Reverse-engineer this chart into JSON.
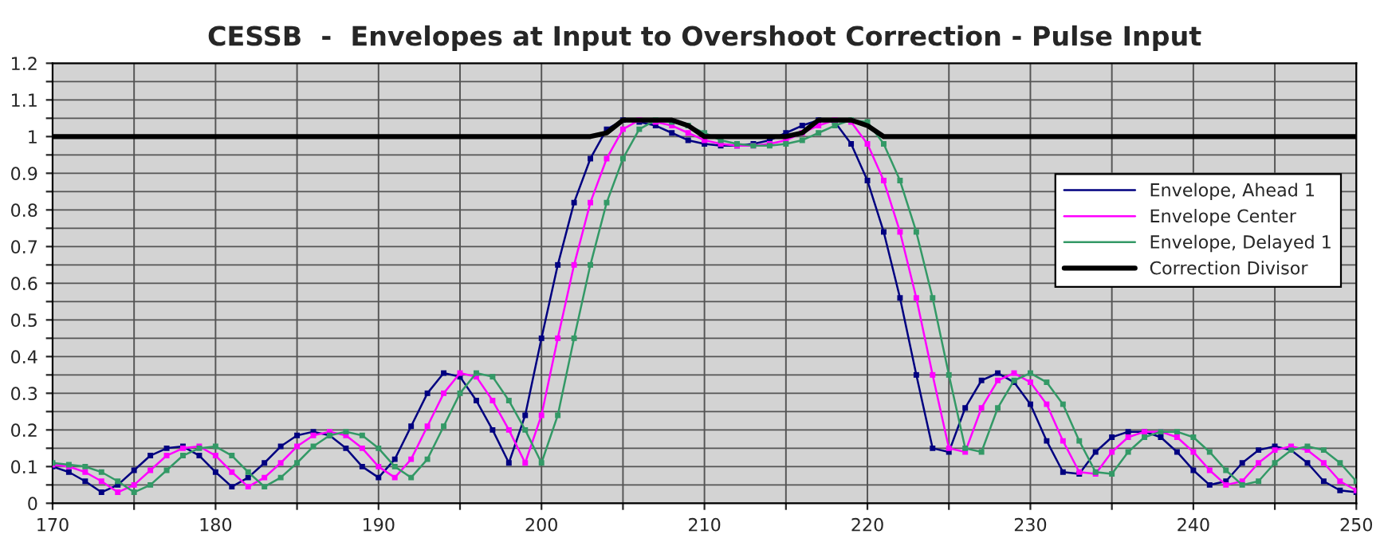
{
  "chart_data": {
    "type": "line",
    "title": "CESSB  -  Envelopes at Input to Overshoot Correction - Pulse Input",
    "x": [
      170,
      171,
      172,
      173,
      174,
      175,
      176,
      177,
      178,
      179,
      180,
      181,
      182,
      183,
      184,
      185,
      186,
      187,
      188,
      189,
      190,
      191,
      192,
      193,
      194,
      195,
      196,
      197,
      198,
      199,
      200,
      201,
      202,
      203,
      204,
      205,
      206,
      207,
      208,
      209,
      210,
      211,
      212,
      213,
      214,
      215,
      216,
      217,
      218,
      219,
      220,
      221,
      222,
      223,
      224,
      225,
      226,
      227,
      228,
      229,
      230,
      231,
      232,
      233,
      234,
      235,
      236,
      237,
      238,
      239,
      240,
      241,
      242,
      243,
      244,
      245,
      246,
      247,
      248,
      249,
      250
    ],
    "series": [
      {
        "name": "Envelope, Ahead 1",
        "color": "#000080",
        "marker": "square",
        "values": [
          0.1,
          0.085,
          0.06,
          0.03,
          0.05,
          0.09,
          0.13,
          0.15,
          0.155,
          0.13,
          0.085,
          0.045,
          0.07,
          0.11,
          0.155,
          0.185,
          0.195,
          0.185,
          0.15,
          0.1,
          0.07,
          0.12,
          0.21,
          0.3,
          0.355,
          0.345,
          0.28,
          0.2,
          0.11,
          0.24,
          0.45,
          0.65,
          0.82,
          0.94,
          1.02,
          1.045,
          1.04,
          1.03,
          1.01,
          0.99,
          0.98,
          0.975,
          0.975,
          0.98,
          0.99,
          1.01,
          1.03,
          1.045,
          1.04,
          0.98,
          0.88,
          0.74,
          0.56,
          0.35,
          0.15,
          0.14,
          0.26,
          0.335,
          0.355,
          0.33,
          0.27,
          0.17,
          0.085,
          0.08,
          0.14,
          0.18,
          0.195,
          0.195,
          0.18,
          0.14,
          0.09,
          0.05,
          0.06,
          0.11,
          0.145,
          0.155,
          0.145,
          0.11,
          0.06,
          0.035,
          0.03
        ]
      },
      {
        "name": "Envelope Center",
        "color": "#ff00ff",
        "marker": "square",
        "values": [
          0.105,
          0.1,
          0.085,
          0.06,
          0.03,
          0.05,
          0.09,
          0.13,
          0.15,
          0.155,
          0.13,
          0.085,
          0.045,
          0.07,
          0.11,
          0.155,
          0.185,
          0.195,
          0.185,
          0.15,
          0.1,
          0.07,
          0.12,
          0.21,
          0.3,
          0.355,
          0.345,
          0.28,
          0.2,
          0.11,
          0.24,
          0.45,
          0.65,
          0.82,
          0.94,
          1.02,
          1.045,
          1.04,
          1.03,
          1.01,
          0.99,
          0.98,
          0.975,
          0.975,
          0.98,
          0.99,
          1.01,
          1.03,
          1.045,
          1.04,
          0.98,
          0.88,
          0.74,
          0.56,
          0.35,
          0.15,
          0.14,
          0.26,
          0.335,
          0.355,
          0.33,
          0.27,
          0.17,
          0.085,
          0.08,
          0.14,
          0.18,
          0.195,
          0.195,
          0.18,
          0.14,
          0.09,
          0.05,
          0.06,
          0.11,
          0.145,
          0.155,
          0.145,
          0.11,
          0.06,
          0.035
        ]
      },
      {
        "name": "Envelope, Delayed 1",
        "color": "#339966",
        "marker": "square",
        "values": [
          0.11,
          0.105,
          0.1,
          0.085,
          0.06,
          0.03,
          0.05,
          0.09,
          0.13,
          0.15,
          0.155,
          0.13,
          0.085,
          0.045,
          0.07,
          0.11,
          0.155,
          0.185,
          0.195,
          0.185,
          0.15,
          0.1,
          0.07,
          0.12,
          0.21,
          0.3,
          0.355,
          0.345,
          0.28,
          0.2,
          0.11,
          0.24,
          0.45,
          0.65,
          0.82,
          0.94,
          1.02,
          1.045,
          1.04,
          1.03,
          1.01,
          0.99,
          0.98,
          0.975,
          0.975,
          0.98,
          0.99,
          1.01,
          1.03,
          1.045,
          1.04,
          0.98,
          0.88,
          0.74,
          0.56,
          0.35,
          0.15,
          0.14,
          0.26,
          0.335,
          0.355,
          0.33,
          0.27,
          0.17,
          0.085,
          0.08,
          0.14,
          0.18,
          0.195,
          0.195,
          0.18,
          0.14,
          0.09,
          0.05,
          0.06,
          0.11,
          0.145,
          0.155,
          0.145,
          0.11,
          0.06
        ]
      },
      {
        "name": "Correction Divisor",
        "color": "#000000",
        "marker": "none",
        "values": [
          1,
          1,
          1,
          1,
          1,
          1,
          1,
          1,
          1,
          1,
          1,
          1,
          1,
          1,
          1,
          1,
          1,
          1,
          1,
          1,
          1,
          1,
          1,
          1,
          1,
          1,
          1,
          1,
          1,
          1,
          1,
          1,
          1,
          1,
          1.01,
          1.045,
          1.045,
          1.045,
          1.045,
          1.03,
          1,
          1,
          1,
          1,
          1,
          1,
          1.01,
          1.045,
          1.045,
          1.045,
          1.03,
          1,
          1,
          1,
          1,
          1,
          1,
          1,
          1,
          1,
          1,
          1,
          1,
          1,
          1,
          1,
          1,
          1,
          1,
          1,
          1,
          1,
          1,
          1,
          1,
          1,
          1,
          1,
          1,
          1,
          1
        ]
      }
    ],
    "xlim": [
      170,
      250
    ],
    "xticks": [
      170,
      {
        "value": 175,
        "label": null
      },
      180,
      {
        "value": 185,
        "label": null
      },
      190,
      {
        "value": 195,
        "label": null
      },
      200,
      {
        "value": 205,
        "label": null
      },
      210,
      {
        "value": 215,
        "label": null
      },
      220,
      {
        "value": 225,
        "label": null
      },
      230,
      {
        "value": 235,
        "label": null
      },
      240,
      {
        "value": 245,
        "label": null
      },
      250
    ],
    "ylim": [
      0,
      1.2
    ],
    "yticks": [
      0,
      {
        "value": 0.05,
        "label": null
      },
      0.1,
      {
        "value": 0.15,
        "label": null
      },
      0.2,
      {
        "value": 0.25,
        "label": null
      },
      0.3,
      {
        "value": 0.35,
        "label": null
      },
      0.4,
      {
        "value": 0.45,
        "label": null
      },
      0.5,
      {
        "value": 0.55,
        "label": null
      },
      0.6,
      {
        "value": 0.65,
        "label": null
      },
      0.7,
      {
        "value": 0.75,
        "label": null
      },
      0.8,
      {
        "value": 0.85,
        "label": null
      },
      0.9,
      {
        "value": 0.95,
        "label": null
      },
      1,
      {
        "value": 1.05,
        "label": null
      },
      1.1,
      {
        "value": 1.15,
        "label": null
      },
      1.2
    ],
    "grid": true,
    "legend": "right",
    "line_style": "solid"
  }
}
